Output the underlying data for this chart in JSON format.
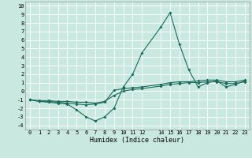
{
  "xlabel": "Humidex (Indice chaleur)",
  "xlim": [
    -0.5,
    23.5
  ],
  "ylim": [
    -4.5,
    10.5
  ],
  "xticks": [
    0,
    1,
    2,
    3,
    4,
    5,
    6,
    7,
    8,
    9,
    10,
    11,
    12,
    14,
    15,
    16,
    17,
    18,
    19,
    20,
    21,
    22,
    23
  ],
  "yticks": [
    -4,
    -3,
    -2,
    -1,
    0,
    1,
    2,
    3,
    4,
    5,
    6,
    7,
    8,
    9,
    10
  ],
  "bg_color": "#c8e8e0",
  "line_color": "#1a6b5a",
  "grid_color": "#ffffff",
  "line1_x": [
    0,
    1,
    2,
    3,
    4,
    5,
    6,
    7,
    8,
    9,
    10,
    11,
    12,
    14,
    15,
    16,
    17,
    18,
    19,
    20,
    21,
    22,
    23
  ],
  "line1_y": [
    -1,
    -1.2,
    -1.3,
    -1.4,
    -1.5,
    -2.2,
    -3.0,
    -3.5,
    -3.0,
    -2.0,
    0.5,
    2.0,
    4.5,
    7.5,
    9.2,
    5.5,
    2.5,
    0.5,
    1.0,
    1.2,
    0.5,
    0.8,
    1.2
  ],
  "line2_x": [
    0,
    1,
    2,
    3,
    4,
    5,
    6,
    7,
    8,
    9,
    10,
    11,
    12,
    14,
    15,
    16,
    17,
    18,
    19,
    20,
    21,
    22,
    23
  ],
  "line2_y": [
    -1,
    -1.2,
    -1.2,
    -1.3,
    -1.4,
    -1.5,
    -1.6,
    -1.5,
    -1.3,
    0.1,
    0.3,
    0.4,
    0.5,
    0.8,
    1.0,
    1.1,
    1.1,
    1.2,
    1.3,
    1.3,
    1.1,
    1.1,
    1.3
  ],
  "line3_x": [
    0,
    1,
    2,
    3,
    4,
    5,
    6,
    7,
    8,
    9,
    10,
    11,
    12,
    14,
    15,
    16,
    17,
    18,
    19,
    20,
    21,
    22,
    23
  ],
  "line3_y": [
    -1,
    -1.1,
    -1.1,
    -1.2,
    -1.2,
    -1.3,
    -1.3,
    -1.4,
    -1.2,
    -0.5,
    0.0,
    0.2,
    0.3,
    0.6,
    0.8,
    0.9,
    1.0,
    1.0,
    1.1,
    1.1,
    0.9,
    0.9,
    1.1
  ],
  "tick_fontsize": 5.0,
  "xlabel_fontsize": 6.0,
  "marker_size": 2.0,
  "line_width": 0.8
}
